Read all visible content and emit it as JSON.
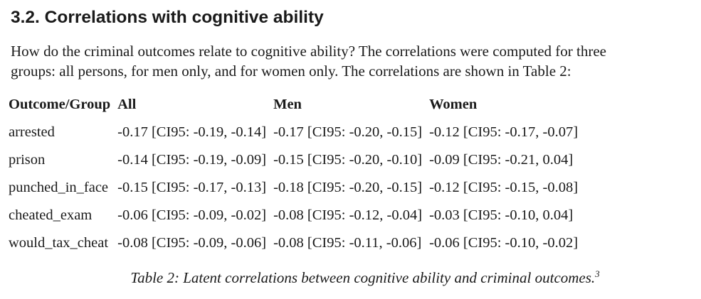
{
  "section": {
    "heading": "3.2.  Correlations with cognitive ability",
    "paragraph_lines": [
      "How do the criminal outcomes relate to cognitive ability? The correlations were computed for three",
      "groups: all persons, for men only, and for women only. The correlations are shown in Table 2:"
    ]
  },
  "table": {
    "headers": [
      "Outcome/Group",
      "All",
      "Men",
      "Women"
    ],
    "rows": [
      [
        "arrested",
        "-0.17 [CI95: -0.19, -0.14]",
        "-0.17 [CI95: -0.20, -0.15]",
        "-0.12 [CI95: -0.17, -0.07]"
      ],
      [
        "prison",
        "-0.14 [CI95: -0.19, -0.09]",
        "-0.15 [CI95: -0.20, -0.10]",
        "-0.09 [CI95: -0.21, 0.04]"
      ],
      [
        "punched_in_face",
        "-0.15 [CI95: -0.17, -0.13]",
        "-0.18 [CI95: -0.20, -0.15]",
        "-0.12 [CI95: -0.15, -0.08]"
      ],
      [
        "cheated_exam",
        "-0.06 [CI95: -0.09, -0.02]",
        "-0.08 [CI95: -0.12, -0.04]",
        "-0.03 [CI95: -0.10, 0.04]"
      ],
      [
        "would_tax_cheat",
        "-0.08 [CI95: -0.09, -0.06]",
        "-0.08 [CI95: -0.11, -0.06]",
        "-0.06 [CI95: -0.10, -0.02]"
      ]
    ]
  },
  "caption": {
    "text": "Table 2: Latent correlations between cognitive ability and criminal outcomes.",
    "footnote_marker": "3"
  }
}
